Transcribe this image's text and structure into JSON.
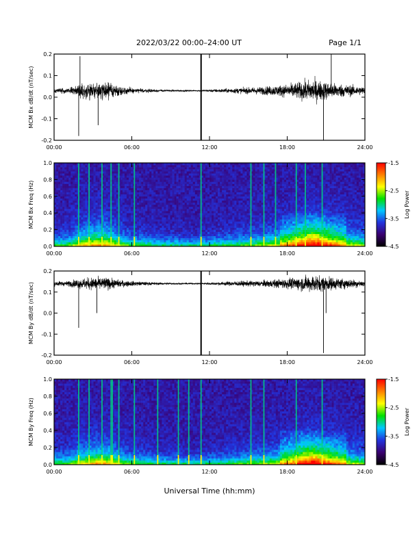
{
  "header": {
    "title": "2022/03/22   00:00–24:00 UT",
    "page": "Page 1/1"
  },
  "footer": {
    "xlabel": "Universal Time (hh:mm)"
  },
  "colors": {
    "trace": "#000000",
    "spectrogram_scale": [
      "#000000",
      "#3a0070",
      "#2233dd",
      "#00c8ff",
      "#00e000",
      "#ffff00",
      "#ff8000",
      "#ff0000"
    ]
  },
  "chart_data": [
    {
      "type": "line",
      "ylabel": "MCM Bx dB/dt (nT/sec)",
      "xlim": [
        0,
        24
      ],
      "ylim": [
        -0.2,
        0.2
      ],
      "yticks": [
        -0.2,
        -0.1,
        0.0,
        0.1,
        0.2
      ],
      "ytick_labels": [
        "-0.2",
        "-0.1",
        "0.0",
        "0.1",
        "0.2"
      ],
      "xticks": [
        0,
        6,
        12,
        18,
        24
      ],
      "xtick_labels": [
        "00:00",
        "06:00",
        "12:00",
        "18:00",
        "24:00"
      ],
      "baseline": 0.03,
      "activity": [
        {
          "hour": 1,
          "amplitude": 0.02
        },
        {
          "hour": 2,
          "amplitude": 0.05
        },
        {
          "hour": 3,
          "amplitude": 0.07
        },
        {
          "hour": 4,
          "amplitude": 0.07
        },
        {
          "hour": 5,
          "amplitude": 0.04
        },
        {
          "hour": 6,
          "amplitude": 0.02
        },
        {
          "hour": 8,
          "amplitude": 0.01
        },
        {
          "hour": 11,
          "amplitude": 0.005
        },
        {
          "hour": 14,
          "amplitude": 0.02
        },
        {
          "hour": 16,
          "amplitude": 0.03
        },
        {
          "hour": 18,
          "amplitude": 0.05
        },
        {
          "hour": 20,
          "amplitude": 0.09
        },
        {
          "hour": 21.5,
          "amplitude": 0.06
        },
        {
          "hour": 24,
          "amplitude": 0.03
        }
      ],
      "events": [
        {
          "hour": 1.9,
          "value": -0.18
        },
        {
          "hour": 2.0,
          "value": 0.19
        },
        {
          "hour": 3.4,
          "value": -0.13
        },
        {
          "hour": 20.8,
          "value": -0.2
        },
        {
          "hour": 21.4,
          "value": 0.2
        }
      ],
      "gaps": [
        11.35
      ]
    },
    {
      "type": "heatmap",
      "ylabel": "MCM Bx Freq (Hz)",
      "xlim": [
        0,
        24
      ],
      "ylim": [
        0,
        1.0
      ],
      "yticks": [
        0.0,
        0.2,
        0.4,
        0.6,
        0.8,
        1.0
      ],
      "ytick_labels": [
        "0.0",
        "0.2",
        "0.4",
        "0.6",
        "0.8",
        "1.0"
      ],
      "xticks": [
        0,
        6,
        12,
        18,
        24
      ],
      "xtick_labels": [
        "00:00",
        "06:00",
        "12:00",
        "18:00",
        "24:00"
      ],
      "colorbar": {
        "label": "Log Power",
        "range": [
          -4.5,
          -1.5
        ],
        "ticks": [
          -1.5,
          -2.5,
          -3.5,
          -4.5
        ],
        "tick_labels": [
          "-1.5",
          "-2.5",
          "-3.5",
          "-4.5"
        ]
      },
      "spikes": [
        1.9,
        2.7,
        3.7,
        4.4,
        5.0,
        6.2,
        11.35,
        15.2,
        16.2,
        17.1,
        18.7,
        19.4,
        20.7
      ]
    },
    {
      "type": "line",
      "ylabel": "MCM By dB/dt (nT/sec)",
      "xlim": [
        0,
        24
      ],
      "ylim": [
        -0.2,
        0.2
      ],
      "yticks": [
        -0.2,
        -0.1,
        0.0,
        0.1,
        0.2
      ],
      "ytick_labels": [
        "-0.2",
        "-0.1",
        "0.0",
        "0.1",
        "0.2"
      ],
      "xticks": [
        0,
        6,
        12,
        18,
        24
      ],
      "xtick_labels": [
        "00:00",
        "06:00",
        "12:00",
        "18:00",
        "24:00"
      ],
      "baseline": 0.14,
      "activity": [
        {
          "hour": 1,
          "amplitude": 0.02
        },
        {
          "hour": 2,
          "amplitude": 0.04
        },
        {
          "hour": 3,
          "amplitude": 0.05
        },
        {
          "hour": 4,
          "amplitude": 0.05
        },
        {
          "hour": 5,
          "amplitude": 0.03
        },
        {
          "hour": 6,
          "amplitude": 0.02
        },
        {
          "hour": 8,
          "amplitude": 0.01
        },
        {
          "hour": 11,
          "amplitude": 0.005
        },
        {
          "hour": 14,
          "amplitude": 0.02
        },
        {
          "hour": 16,
          "amplitude": 0.025
        },
        {
          "hour": 18,
          "amplitude": 0.04
        },
        {
          "hour": 20,
          "amplitude": 0.07
        },
        {
          "hour": 21.5,
          "amplitude": 0.05
        },
        {
          "hour": 24,
          "amplitude": 0.025
        }
      ],
      "events": [
        {
          "hour": 1.9,
          "value": -0.07
        },
        {
          "hour": 3.3,
          "value": 0.0
        },
        {
          "hour": 20.8,
          "value": -0.19
        },
        {
          "hour": 21.0,
          "value": 0.0
        }
      ],
      "gaps": [
        11.35
      ]
    },
    {
      "type": "heatmap",
      "ylabel": "MCM By Freq (Hz)",
      "xlim": [
        0,
        24
      ],
      "ylim": [
        0,
        1.0
      ],
      "yticks": [
        0.0,
        0.2,
        0.4,
        0.6,
        0.8,
        1.0
      ],
      "ytick_labels": [
        "0.0",
        "0.2",
        "0.4",
        "0.6",
        "0.8",
        "1.0"
      ],
      "xticks": [
        0,
        6,
        12,
        18,
        24
      ],
      "xtick_labels": [
        "00:00",
        "06:00",
        "12:00",
        "18:00",
        "24:00"
      ],
      "colorbar": {
        "label": "Log Power",
        "range": [
          -4.5,
          -1.5
        ],
        "ticks": [
          -1.5,
          -2.5,
          -3.5,
          -4.5
        ],
        "tick_labels": [
          "-1.5",
          "-2.5",
          "-3.5",
          "-4.5"
        ]
      },
      "spikes": [
        1.9,
        2.7,
        3.7,
        4.4,
        4.5,
        5.0,
        6.2,
        8.0,
        9.6,
        10.4,
        11.35,
        15.2,
        16.2,
        18.7,
        20.7
      ]
    }
  ]
}
